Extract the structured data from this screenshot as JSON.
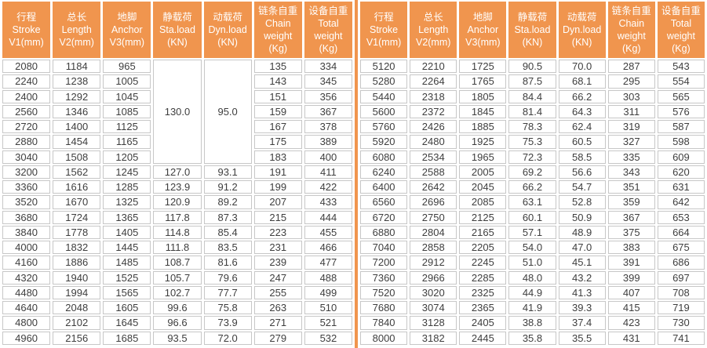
{
  "colors": {
    "header_bg": "#F0954E",
    "header_text": "#FFFFFF",
    "divider": "#F0954E",
    "grid_border": "#C7C7C7",
    "cell_bg": "#FFFFFF",
    "cell_text": "#3E3E3E"
  },
  "table": {
    "headers": [
      {
        "lines": [
          "行程",
          "Stroke",
          "V1(mm)"
        ]
      },
      {
        "lines": [
          "总长",
          "Length",
          "V2(mm)"
        ]
      },
      {
        "lines": [
          "地脚",
          "Anchor",
          "V3(mm)"
        ]
      },
      {
        "lines": [
          "静载荷",
          "Sta.load",
          "(KN)"
        ]
      },
      {
        "lines": [
          "动载荷",
          "Dyn.load",
          "(KN)"
        ]
      },
      {
        "lines": [
          "链条自重",
          "Chain",
          "weight",
          "(Kg)"
        ]
      },
      {
        "lines": [
          "设备自重",
          "Total",
          "weight",
          "(Kg)"
        ]
      }
    ],
    "left": {
      "merged_cells": [
        {
          "col": 3,
          "start_row": 0,
          "row_span": 7,
          "value": "130.0"
        },
        {
          "col": 4,
          "start_row": 0,
          "row_span": 7,
          "value": "95.0"
        }
      ],
      "rows": [
        [
          "2080",
          "1184",
          "965",
          null,
          null,
          "135",
          "334"
        ],
        [
          "2240",
          "1238",
          "1005",
          null,
          null,
          "143",
          "345"
        ],
        [
          "2400",
          "1292",
          "1045",
          null,
          null,
          "151",
          "356"
        ],
        [
          "2560",
          "1346",
          "1085",
          null,
          null,
          "159",
          "367"
        ],
        [
          "2720",
          "1400",
          "1125",
          null,
          null,
          "167",
          "378"
        ],
        [
          "2880",
          "1454",
          "1165",
          null,
          null,
          "175",
          "389"
        ],
        [
          "3040",
          "1508",
          "1205",
          null,
          null,
          "183",
          "400"
        ],
        [
          "3200",
          "1562",
          "1245",
          "127.0",
          "93.1",
          "191",
          "411"
        ],
        [
          "3360",
          "1616",
          "1285",
          "123.9",
          "91.2",
          "199",
          "422"
        ],
        [
          "3520",
          "1670",
          "1325",
          "120.9",
          "89.2",
          "207",
          "433"
        ],
        [
          "3680",
          "1724",
          "1365",
          "117.8",
          "87.3",
          "215",
          "444"
        ],
        [
          "3840",
          "1778",
          "1405",
          "114.8",
          "85.4",
          "223",
          "455"
        ],
        [
          "4000",
          "1832",
          "1445",
          "111.8",
          "83.5",
          "231",
          "466"
        ],
        [
          "4160",
          "1886",
          "1485",
          "108.7",
          "81.6",
          "239",
          "477"
        ],
        [
          "4320",
          "1940",
          "1525",
          "105.7",
          "79.6",
          "247",
          "488"
        ],
        [
          "4480",
          "1994",
          "1565",
          "102.7",
          "77.7",
          "255",
          "499"
        ],
        [
          "4640",
          "2048",
          "1605",
          "99.6",
          "75.8",
          "263",
          "510"
        ],
        [
          "4800",
          "2102",
          "1645",
          "96.6",
          "73.9",
          "271",
          "521"
        ],
        [
          "4960",
          "2156",
          "1685",
          "93.5",
          "72.0",
          "279",
          "532"
        ]
      ]
    },
    "right": {
      "merged_cells": [],
      "rows": [
        [
          "5120",
          "2210",
          "1725",
          "90.5",
          "70.0",
          "287",
          "543"
        ],
        [
          "5280",
          "2264",
          "1765",
          "87.5",
          "68.1",
          "295",
          "554"
        ],
        [
          "5440",
          "2318",
          "1805",
          "84.4",
          "66.2",
          "303",
          "565"
        ],
        [
          "5600",
          "2372",
          "1845",
          "81.4",
          "64.3",
          "311",
          "576"
        ],
        [
          "5760",
          "2426",
          "1885",
          "78.3",
          "62.4",
          "319",
          "587"
        ],
        [
          "5920",
          "2480",
          "1925",
          "75.3",
          "60.5",
          "327",
          "598"
        ],
        [
          "6080",
          "2534",
          "1965",
          "72.3",
          "58.5",
          "335",
          "609"
        ],
        [
          "6240",
          "2588",
          "2005",
          "69.2",
          "56.6",
          "343",
          "620"
        ],
        [
          "6400",
          "2642",
          "2045",
          "66.2",
          "54.7",
          "351",
          "631"
        ],
        [
          "6560",
          "2696",
          "2085",
          "63.1",
          "52.8",
          "359",
          "642"
        ],
        [
          "6720",
          "2750",
          "2125",
          "60.1",
          "50.9",
          "367",
          "653"
        ],
        [
          "6880",
          "2804",
          "2165",
          "57.1",
          "48.9",
          "375",
          "664"
        ],
        [
          "7040",
          "2858",
          "2205",
          "54.0",
          "47.0",
          "383",
          "675"
        ],
        [
          "7200",
          "2912",
          "2245",
          "51.0",
          "45.1",
          "391",
          "686"
        ],
        [
          "7360",
          "2966",
          "2285",
          "48.0",
          "43.2",
          "399",
          "697"
        ],
        [
          "7520",
          "3020",
          "2325",
          "44.9",
          "41.3",
          "407",
          "708"
        ],
        [
          "7680",
          "3074",
          "2365",
          "41.9",
          "39.3",
          "415",
          "719"
        ],
        [
          "7840",
          "3128",
          "2405",
          "38.8",
          "37.4",
          "423",
          "730"
        ],
        [
          "8000",
          "3182",
          "2445",
          "35.8",
          "35.5",
          "431",
          "741"
        ]
      ]
    }
  }
}
